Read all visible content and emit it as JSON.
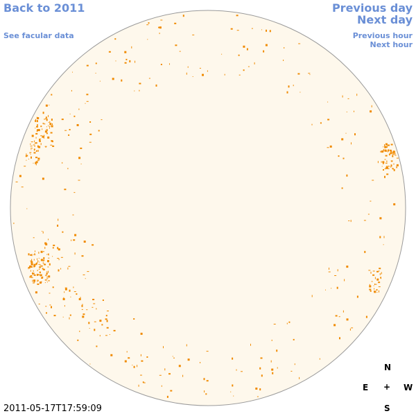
{
  "nav": {
    "back": "Back to 2011",
    "facular": "See facular data",
    "prev_day": "Previous day",
    "next_day": "Next day",
    "prev_hour": "Previous hour",
    "next_hour": "Next hour"
  },
  "timestamp": "2011-05-17T17:59:09",
  "compass": {
    "north": "N",
    "east": "E",
    "center": "+",
    "west": "W",
    "south": "S"
  }
}
